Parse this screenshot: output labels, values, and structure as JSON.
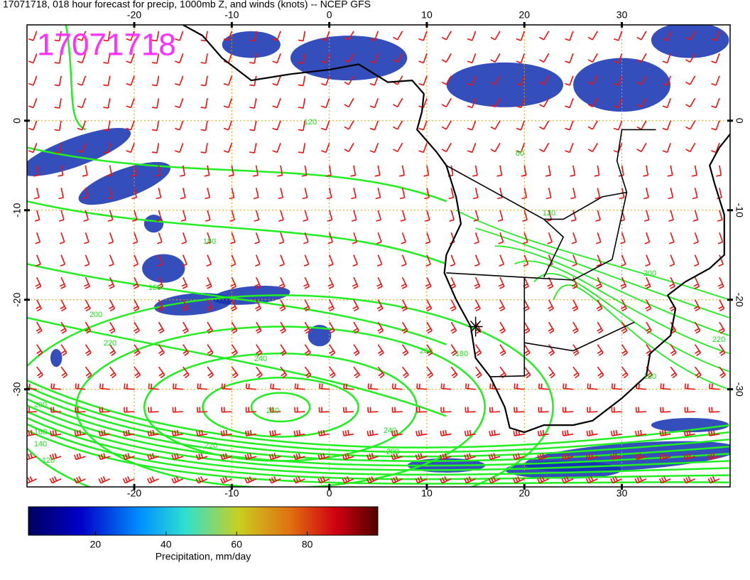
{
  "title": "17071718, 018 hour forecast for precip, 1000mb Z, and winds (knots) -- NCEP GFS",
  "stamp": "17071718",
  "map": {
    "xlim": [
      -31,
      41.1
    ],
    "ylim": [
      -40.9,
      10.7
    ],
    "xticks": [
      -20,
      -10,
      0,
      10,
      20,
      30
    ],
    "yticks": [
      0,
      -10,
      -20,
      -30
    ]
  },
  "contour_labels": [
    120,
    180,
    160,
    200,
    220,
    240,
    260,
    240,
    220,
    200,
    180,
    200,
    200,
    160,
    140,
    120,
    80,
    120,
    200,
    220,
    180
  ],
  "colorbar": {
    "label": "Precipitation, mm/day",
    "lim": [
      1,
      100
    ],
    "ticks": [
      20,
      40,
      60,
      80
    ]
  }
}
